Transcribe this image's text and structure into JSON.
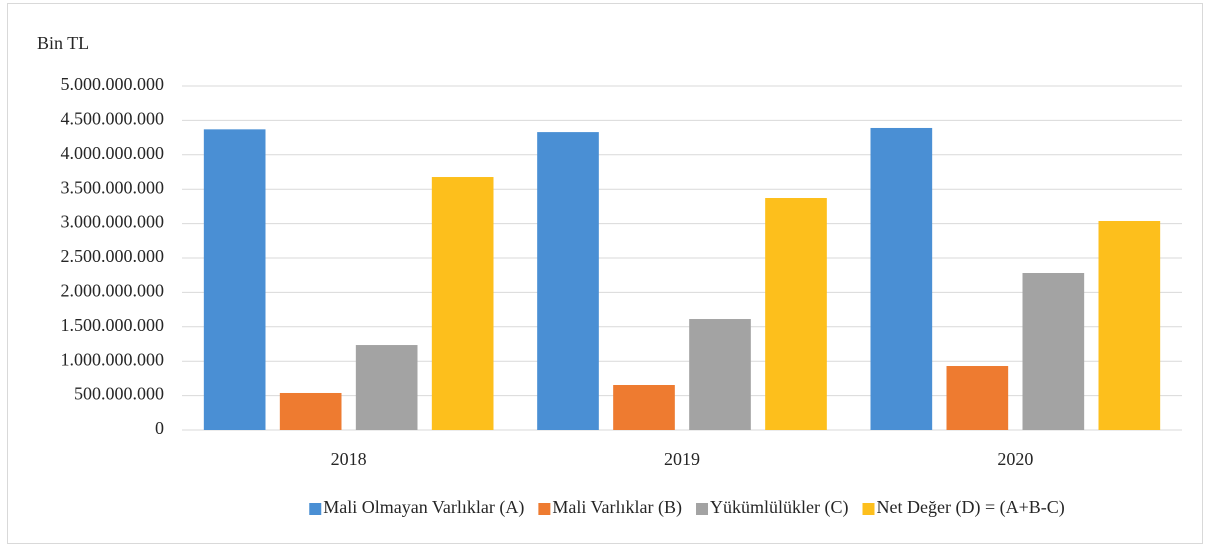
{
  "chart_data": {
    "type": "bar",
    "y_label": "Bin TL",
    "categories": [
      "2018",
      "2019",
      "2020"
    ],
    "series": [
      {
        "name": "Mali Olmayan Varlıklar (A)",
        "color": "#4a8fd4",
        "values": [
          4370000000,
          4330000000,
          4390000000
        ]
      },
      {
        "name": "Mali Varlıklar (B)",
        "color": "#ee7b30",
        "values": [
          538000000,
          654000000,
          930000000
        ]
      },
      {
        "name": "Yükümlülükler (C)",
        "color": "#a3a3a3",
        "values": [
          1235000000,
          1613000000,
          2282000000
        ]
      },
      {
        "name": "Net Değer (D) = (A+B-C)",
        "color": "#fdbf1c",
        "values": [
          3677000000,
          3372000000,
          3038000000
        ]
      }
    ],
    "ylim": [
      0,
      5000000000
    ],
    "yticks": [
      0,
      {
        "value": 500000000,
        "label": "500.000.000"
      },
      {
        "value": 1000000000,
        "label": "1.000.000.000"
      },
      {
        "value": 1500000000,
        "label": "1.500.000.000"
      },
      {
        "value": 2000000000,
        "label": "2.000.000.000"
      },
      {
        "value": 2500000000,
        "label": "2.500.000.000"
      },
      {
        "value": 3000000000,
        "label": "3.000.000.000"
      },
      {
        "value": 3500000000,
        "label": "3.500.000.000"
      },
      {
        "value": 4000000000,
        "label": "4.000.000.000"
      },
      {
        "value": 4500000000,
        "label": "4.500.000.000"
      },
      {
        "value": 5000000000,
        "label": "5.000.000.000"
      }
    ],
    "grid": true,
    "legend": "bottom"
  }
}
